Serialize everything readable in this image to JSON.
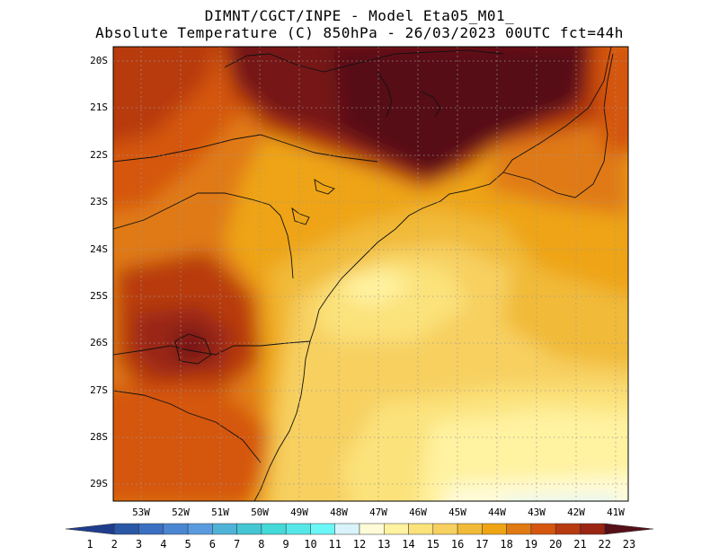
{
  "title_line1": "DIMNT/CGCT/INPE -  Model Eta05_M01_",
  "title_line2": "Absolute Temperature (C) 850hPa -  26/03/2023 00UTC fct=44h",
  "lat_ticks": [
    "20S",
    "21S",
    "22S",
    "23S",
    "24S",
    "25S",
    "26S",
    "27S",
    "28S",
    "29S"
  ],
  "lon_ticks": [
    "53W",
    "52W",
    "51W",
    "50W",
    "49W",
    "48W",
    "47W",
    "46W",
    "45W",
    "44W",
    "43W",
    "42W",
    "41W"
  ],
  "colorbar": {
    "labels": [
      "1",
      "2",
      "3",
      "4",
      "5",
      "6",
      "7",
      "8",
      "9",
      "10",
      "11",
      "12",
      "13",
      "14",
      "15",
      "16",
      "17",
      "18",
      "19",
      "20",
      "21",
      "22",
      "23"
    ],
    "colors": [
      "#1f3d8c",
      "#2a57a6",
      "#3a6fc2",
      "#4a86d2",
      "#5a9be0",
      "#4fb3d8",
      "#44c6d4",
      "#45d9d9",
      "#56e8e8",
      "#6cf7f7",
      "#d8f4fa",
      "#fffbd8",
      "#fff2a0",
      "#fbe27a",
      "#f7d060",
      "#f1ba38",
      "#eea413",
      "#e07a12",
      "#d5560f",
      "#b83a10",
      "#9a2512",
      "#761416",
      "#561018"
    ]
  },
  "map": {
    "lon_range": [
      -53.6,
      -40.6
    ],
    "lat_range": [
      -29.4,
      -19.8
    ]
  }
}
